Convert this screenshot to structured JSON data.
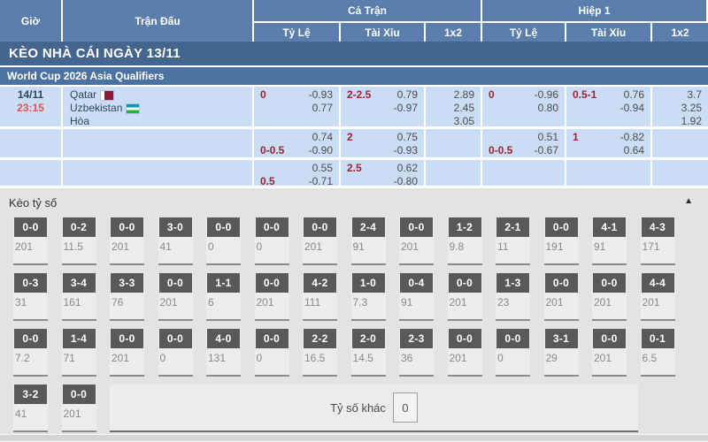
{
  "table_header": {
    "time": "Giờ",
    "match": "Trận Đấu",
    "full": "Cả Trận",
    "half": "Hiệp 1",
    "handicap": "Tỷ Lệ",
    "ou": "Tài Xỉu",
    "x12": "1x2"
  },
  "day_bar": "KÈO NHÀ CÁI NGÀY 13/11",
  "league_bar": "World Cup 2026 Asia Qualifiers",
  "match": {
    "date": "14/11",
    "time": "23:15",
    "teams": {
      "home": "Qatar",
      "away": "Uzbekistan",
      "draw": "Hòa"
    },
    "rows": [
      {
        "full_hc": {
          "l1l": "0",
          "l1r": "-0.93",
          "l2l": "",
          "l2r": "0.77"
        },
        "full_ou": {
          "l1l": "2-2.5",
          "l1r": "0.79",
          "l2l": "",
          "l2r": "-0.97"
        },
        "full_1x2": [
          "2.89",
          "2.45",
          "3.05"
        ],
        "half_hc": {
          "l1l": "0",
          "l1r": "-0.96",
          "l2l": "",
          "l2r": "0.80"
        },
        "half_ou": {
          "l1l": "0.5-1",
          "l1r": "0.76",
          "l2l": "",
          "l2r": "-0.94"
        },
        "half_1x2": [
          "3.7",
          "3.25",
          "1.92"
        ]
      },
      {
        "full_hc": {
          "l1l": "",
          "l1r": "0.74",
          "l2l": "0-0.5",
          "l2r": "-0.90"
        },
        "full_ou": {
          "l1l": "2",
          "l1r": "0.75",
          "l2l": "",
          "l2r": "-0.93"
        },
        "full_1x2": [],
        "half_hc": {
          "l1l": "",
          "l1r": "0.51",
          "l2l": "0-0.5",
          "l2r": "-0.67"
        },
        "half_ou": {
          "l1l": "1",
          "l1r": "-0.82",
          "l2l": "",
          "l2r": "0.64"
        },
        "half_1x2": []
      },
      {
        "full_hc": {
          "l1l": "",
          "l1r": "0.55",
          "l2l": "0.5",
          "l2r": "-0.71"
        },
        "full_ou": {
          "l1l": "2.5",
          "l1r": "0.62",
          "l2l": "",
          "l2r": "-0.80"
        },
        "full_1x2": [],
        "half_hc": {
          "l1l": "",
          "l1r": "",
          "l2l": "",
          "l2r": ""
        },
        "half_ou": {
          "l1l": "",
          "l1r": "",
          "l2l": "",
          "l2r": ""
        },
        "half_1x2": []
      }
    ]
  },
  "score": {
    "title": "Kèo tỷ số",
    "rows": [
      [
        {
          "score": "0-0",
          "odds": "201"
        },
        {
          "score": "0-2",
          "odds": "11.5"
        },
        {
          "score": "0-0",
          "odds": "201"
        },
        {
          "score": "3-0",
          "odds": "41"
        },
        {
          "score": "0-0",
          "odds": "0"
        },
        {
          "score": "0-0",
          "odds": "0"
        },
        {
          "score": "0-0",
          "odds": "201"
        },
        {
          "score": "2-4",
          "odds": "91"
        },
        {
          "score": "0-0",
          "odds": "201"
        },
        {
          "score": "1-2",
          "odds": "9.8"
        },
        {
          "score": "2-1",
          "odds": "11"
        },
        {
          "score": "0-0",
          "odds": "191"
        },
        {
          "score": "4-1",
          "odds": "91"
        },
        {
          "score": "4-3",
          "odds": "171"
        }
      ],
      [
        {
          "score": "0-3",
          "odds": "31"
        },
        {
          "score": "3-4",
          "odds": "161"
        },
        {
          "score": "3-3",
          "odds": "76"
        },
        {
          "score": "0-0",
          "odds": "201"
        },
        {
          "score": "1-1",
          "odds": "6"
        },
        {
          "score": "0-0",
          "odds": "201"
        },
        {
          "score": "4-2",
          "odds": "111"
        },
        {
          "score": "1-0",
          "odds": "7.3"
        },
        {
          "score": "0-4",
          "odds": "91"
        },
        {
          "score": "0-0",
          "odds": "201"
        },
        {
          "score": "1-3",
          "odds": "23"
        },
        {
          "score": "0-0",
          "odds": "201"
        },
        {
          "score": "0-0",
          "odds": "201"
        },
        {
          "score": "4-4",
          "odds": "201"
        }
      ],
      [
        {
          "score": "0-0",
          "odds": "7.2"
        },
        {
          "score": "1-4",
          "odds": "71"
        },
        {
          "score": "0-0",
          "odds": "201"
        },
        {
          "score": "0-0",
          "odds": "0"
        },
        {
          "score": "4-0",
          "odds": "131"
        },
        {
          "score": "0-0",
          "odds": "0"
        },
        {
          "score": "2-2",
          "odds": "16.5"
        },
        {
          "score": "2-0",
          "odds": "14.5"
        },
        {
          "score": "2-3",
          "odds": "36"
        },
        {
          "score": "0-0",
          "odds": "201"
        },
        {
          "score": "0-0",
          "odds": "0"
        },
        {
          "score": "3-1",
          "odds": "29"
        },
        {
          "score": "0-0",
          "odds": "201"
        },
        {
          "score": "0-1",
          "odds": "6.5"
        }
      ],
      [
        {
          "score": "3-2",
          "odds": "41"
        },
        {
          "score": "0-0",
          "odds": "201"
        }
      ]
    ],
    "other_label": "Tỷ số khác",
    "other_value": "0"
  },
  "colors": {
    "header_blue": "#5a7fac",
    "day_bar_blue": "#44658e",
    "league_bar_blue": "#4c72a1",
    "row_light_blue": "#cbdcf5",
    "handicap_red": "#9c2433",
    "time_red": "#e4544d",
    "score_box_gray": "#595959",
    "section_gray": "#e3e3e3"
  }
}
